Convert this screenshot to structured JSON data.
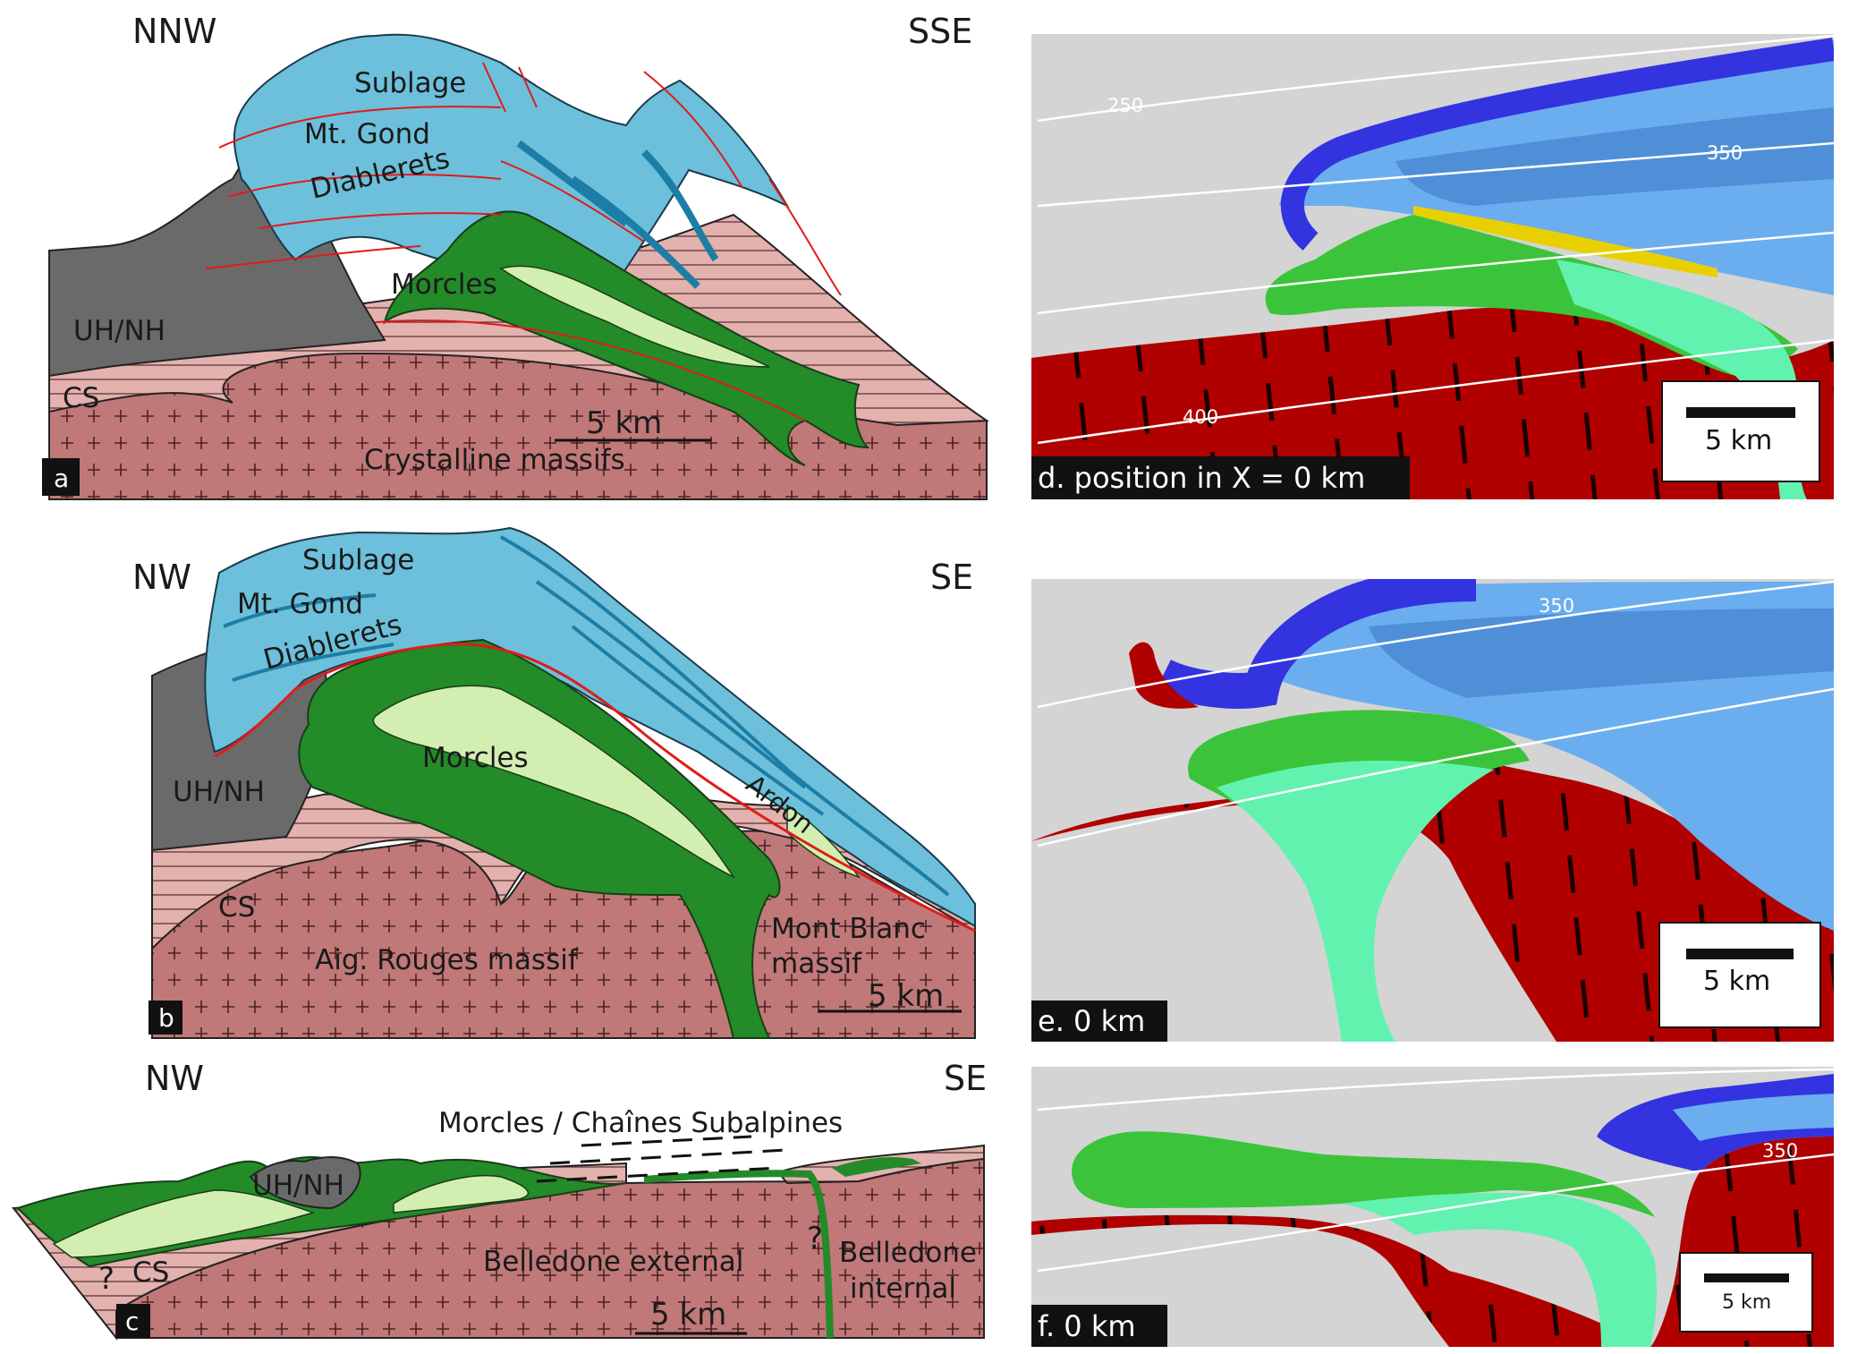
{
  "panels": {
    "a": {
      "letter": "a",
      "left_direction": "NNW",
      "right_direction": "SSE",
      "units": {
        "sublage": "Sublage",
        "mt_gond": "Mt. Gond",
        "diablerets": "Diablerets",
        "morcles": "Morcles",
        "uh_nh": "UH/NH",
        "cs": "CS",
        "crystalline": "Crystalline massifs"
      },
      "scale_label": "5 km"
    },
    "b": {
      "letter": "b",
      "left_direction": "NW",
      "right_direction": "SE",
      "units": {
        "sublage": "Sublage",
        "mt_gond": "Mt. Gond",
        "diablerets": "Diablerets",
        "morcles": "Morcles",
        "ardon": "Ardon",
        "uh_nh": "UH/NH",
        "cs": "CS",
        "aig_rouges": "Aig. Rouges massif",
        "mont_blanc_1": "Mont Blanc",
        "mont_blanc_2": "massif"
      },
      "scale_label": "5 km"
    },
    "c": {
      "letter": "c",
      "left_direction": "NW",
      "right_direction": "SE",
      "units": {
        "morcles_chaines": "Morcles / Chaînes Subalpines",
        "uh_nh": "UH/NH",
        "cs": "CS",
        "question_1": "?",
        "question_2": "?",
        "belledone_external": "Belledone external",
        "belledone_internal_1": "Belledone",
        "belledone_internal_2": "internal"
      },
      "scale_label": "5 km"
    },
    "d": {
      "caption": "d. position in X = 0  km",
      "isotherms": [
        "250",
        "350",
        "400"
      ],
      "scale_label": "5 km"
    },
    "e": {
      "caption": "e. 0 km",
      "isotherms": [
        "350"
      ],
      "scale_label": "5 km"
    },
    "f": {
      "caption": "f. 0 km",
      "isotherms": [
        "350"
      ],
      "scale_label": "5 km"
    }
  },
  "colors": {
    "crystalline": "#c07878",
    "cover_sediments": "#e3b1ae",
    "uh_nh": "#6a6a6a",
    "helvetic_blue": "#6cc0db",
    "helvetic_blue_dark": "#1d7ea5",
    "morcles_dark": "#238b28",
    "morcles_light": "#d3eeb1",
    "thrust_red": "#e21a1a",
    "model_bg": "#d4d4d4",
    "model_basement": "#b00000",
    "model_blue_dark": "#3333e0",
    "model_blue_mid": "#4f8fd8",
    "model_blue_light": "#6aaef0",
    "model_green": "#3bc43b",
    "model_green_light": "#62f2b0",
    "model_yellow": "#e8d000"
  }
}
